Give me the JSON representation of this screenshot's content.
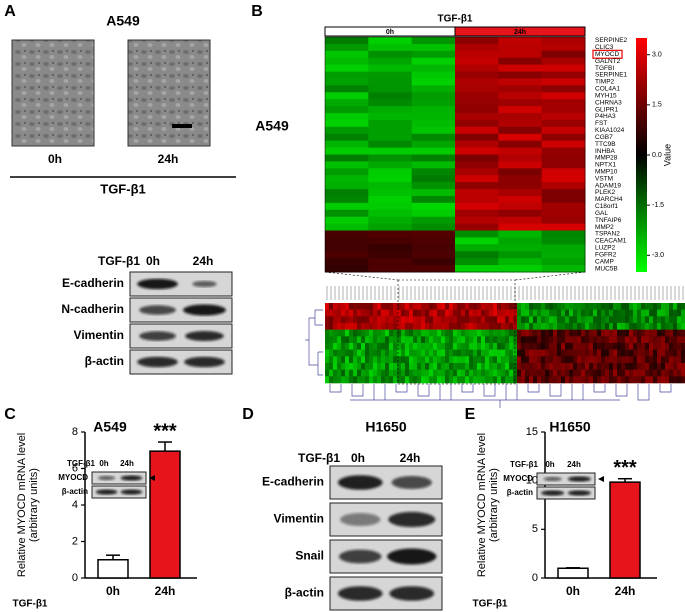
{
  "panel_a": {
    "letter": "A",
    "title": "A549",
    "images": [
      "0h",
      "24h"
    ],
    "treatment": "TGF-β1",
    "blot": {
      "header": [
        "TGF-β1",
        "0h",
        "24h"
      ],
      "rows": [
        "E-cadherin",
        "N-cadherin",
        "Vimentin",
        "β-actin"
      ]
    }
  },
  "panel_b": {
    "letter": "B",
    "treatment": "TGF-β1",
    "groups": [
      "0h",
      "24h"
    ],
    "cell_line": "A549",
    "genes": [
      "SERPINE2",
      "CLIC3",
      "MYOCD",
      "GALNT2",
      "TGFBI",
      "SERPINE1",
      "TIMP2",
      "COL4A1",
      "MYH15",
      "CHRNA3",
      "GLIPR1",
      "P4HA3",
      "FST",
      "KIAA1024",
      "CGB7",
      "TTC9B",
      "INHBA",
      "MMP28",
      "NPTX1",
      "MMP10",
      "VSTM",
      "ADAM19",
      "PLEK2",
      "MARCH4",
      "C18orf1",
      "GAL",
      "TNFAIP6",
      "MMP2",
      "TSPAN2",
      "CEACAM1",
      "LUZP2",
      "FGFR2",
      "CAMP",
      "MUC5B"
    ],
    "colorbar": {
      "label": "Value",
      "ticks": [
        {
          "value": 3,
          "label": "3.0"
        },
        1.5,
        {
          "value": 0,
          "label": "0.0"
        },
        -1.5,
        {
          "value": -3,
          "label": "-3.0"
        }
      ],
      "lim": [
        -3.5,
        3.5
      ]
    }
  },
  "panel_d": {
    "letter": "D",
    "title": "H1650",
    "blot": {
      "header": [
        "TGF-β1",
        "0h",
        "24h"
      ],
      "rows": [
        "E-cadherin",
        "Vimentin",
        "Snail",
        "β-actin"
      ]
    }
  },
  "chart_data": [
    {
      "type": "bar",
      "panel": "C",
      "title": "A549",
      "y_label": [
        "Relative MYOCD mRNA level",
        "(arbitrary units)"
      ],
      "x_label": "TGF-β1",
      "categories": [
        "0h",
        "24h"
      ],
      "values": [
        1.0,
        6.95
      ],
      "errors": [
        0.25,
        0.5
      ],
      "colors": [
        "#ffffff",
        "#e8141b"
      ],
      "ylim": [
        0,
        8
      ],
      "yticks": [
        0,
        2,
        4,
        6,
        8
      ],
      "significance": "***",
      "inset_blot": {
        "header": [
          "TGF-β1",
          "0h",
          "24h"
        ],
        "rows": [
          "MYOCD",
          "β-actin"
        ]
      }
    },
    {
      "type": "bar",
      "panel": "E",
      "title": "H1650",
      "y_label": [
        "Relative MYOCD mRNA level",
        "(arbitrary units)"
      ],
      "x_label": "TGF-β1",
      "categories": [
        "0h",
        "24h"
      ],
      "values": [
        1.0,
        9.85
      ],
      "errors": [
        0.05,
        0.35
      ],
      "colors": [
        "#ffffff",
        "#e8141b"
      ],
      "ylim": [
        0,
        15
      ],
      "yticks": [
        0,
        5,
        10,
        15
      ],
      "significance": "***",
      "inset_blot": {
        "header": [
          "TGF-β1",
          "0h",
          "24h"
        ],
        "rows": [
          "MYOCD",
          "β-actin"
        ]
      }
    }
  ]
}
